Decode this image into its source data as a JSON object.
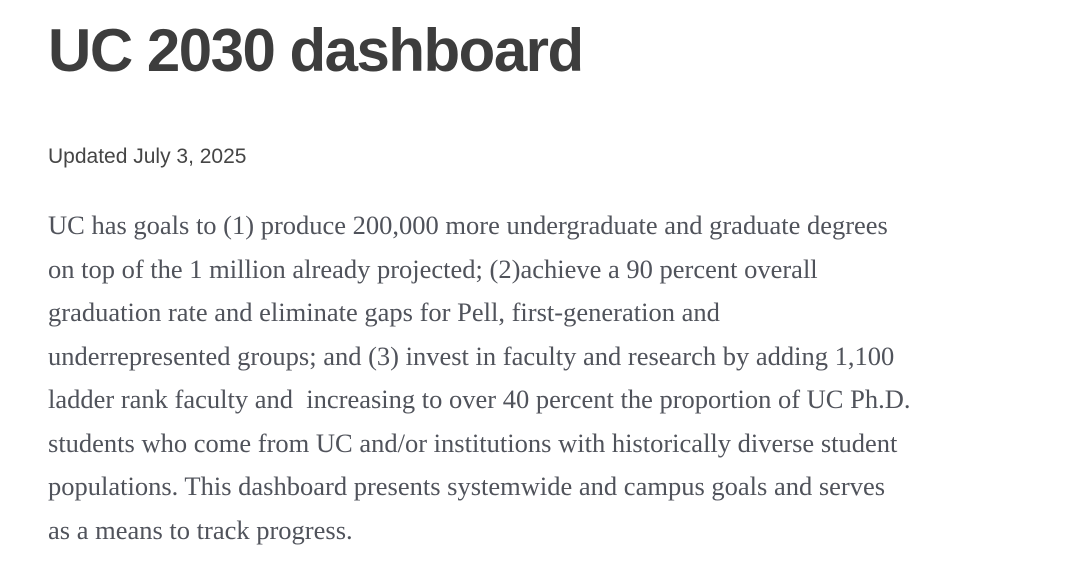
{
  "header": {
    "title": "UC 2030 dashboard",
    "updated": "Updated July 3, 2025"
  },
  "main": {
    "paragraph_lines": [
      "UC has goals to (1) produce 200,000 more undergraduate and graduate degrees",
      "on top of the 1 million already projected; (2)achieve a 90 percent overall",
      "graduation rate and eliminate gaps for Pell, first-generation and",
      "underrepresented groups; and (3) invest in faculty and research by adding 1,100",
      "ladder rank faculty and  increasing to over 40 percent the proportion of UC Ph.D.",
      "students who come from UC and/or institutions with historically diverse student",
      "populations. This dashboard presents systemwide and campus goals and serves",
      "as a means to track progress."
    ]
  },
  "colors": {
    "background": "#ffffff",
    "title_text": "#3d3d3d",
    "meta_text": "#454545",
    "body_text": "#50535b"
  }
}
